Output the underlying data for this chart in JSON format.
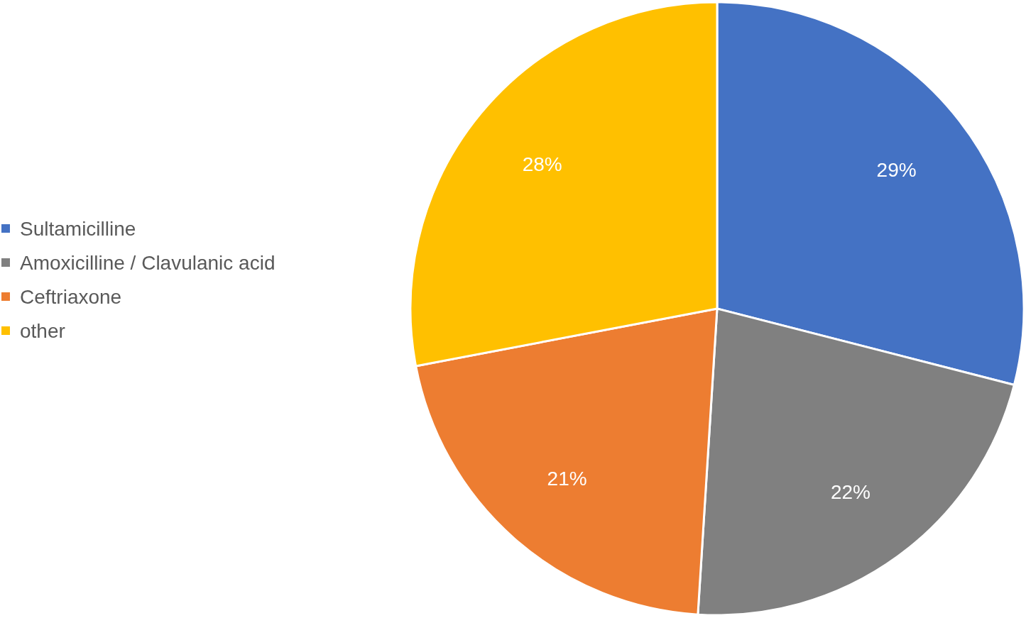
{
  "chart_data": {
    "type": "pie",
    "categories": [
      "Sultamicilline",
      "Amoxicilline / Clavulanic acid",
      "Ceftriaxone",
      "other"
    ],
    "values": [
      29,
      22,
      21,
      28
    ],
    "value_labels": [
      "29%",
      "22%",
      "21%",
      "28%"
    ],
    "colors": [
      "#4472c4",
      "#808080",
      "#ed7d31",
      "#ffc000"
    ],
    "legend": "left"
  }
}
